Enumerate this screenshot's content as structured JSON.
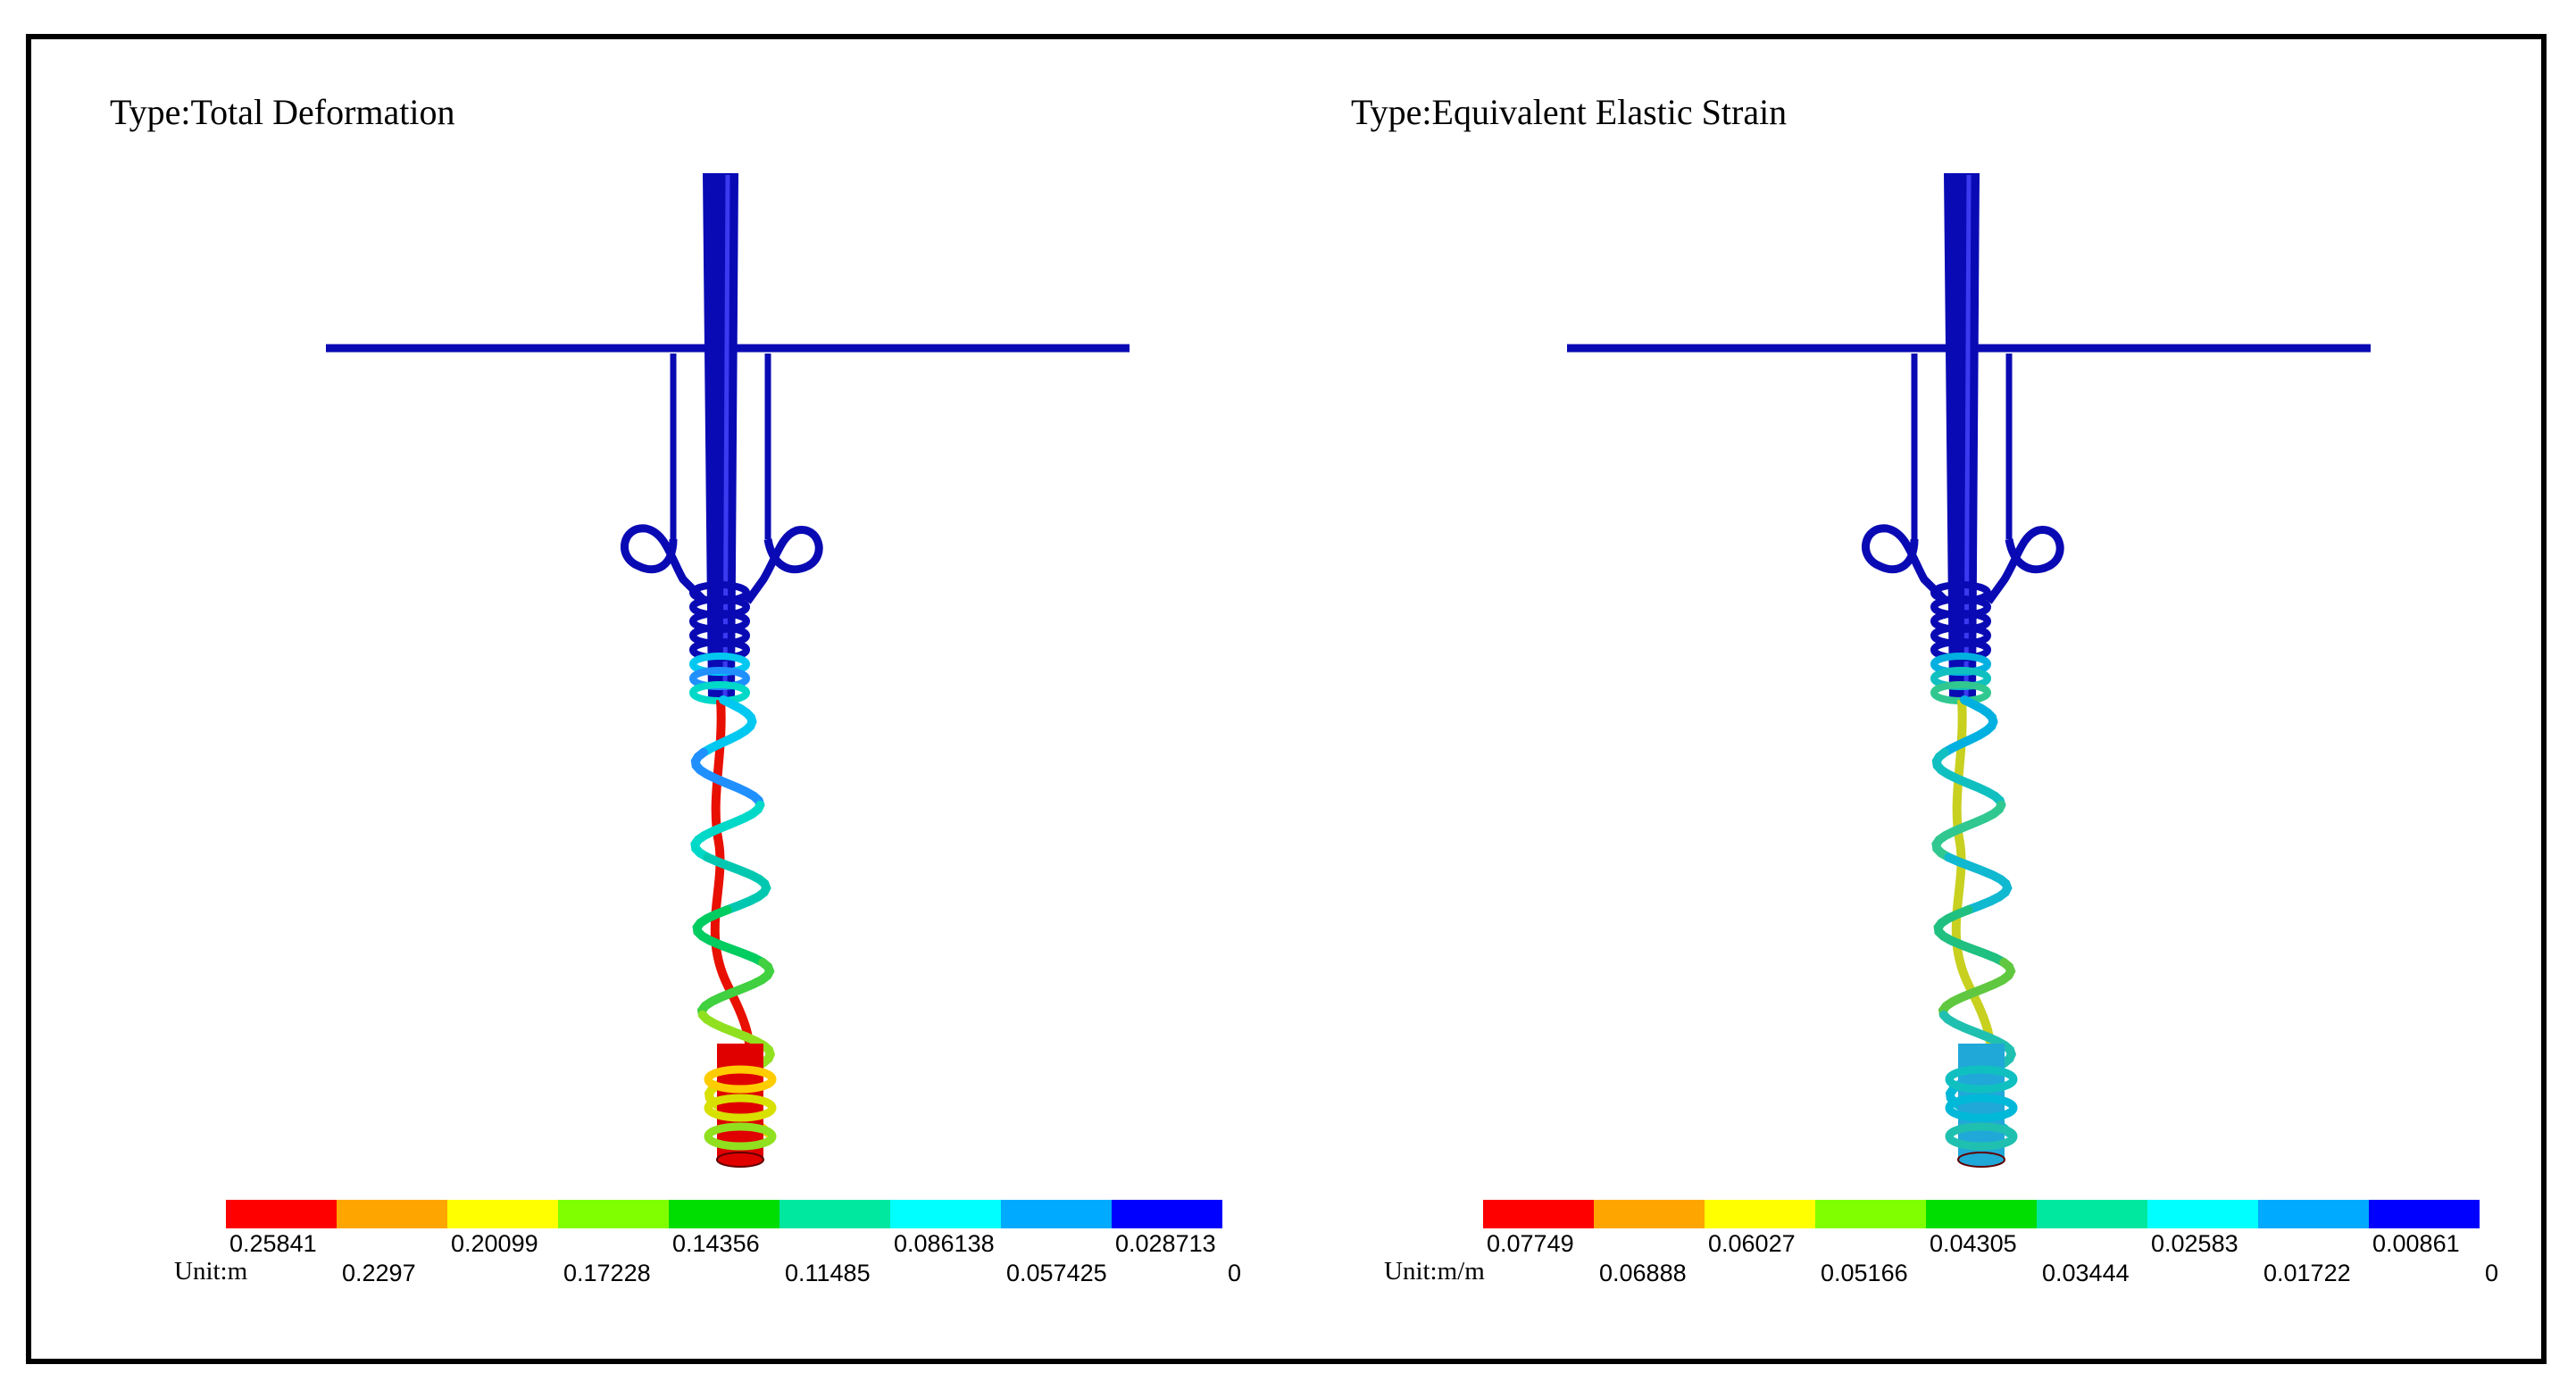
{
  "panels": [
    {
      "title": "Type:Total Deformation",
      "unit": "Unit:m",
      "legend_colors": [
        "#ff0000",
        "#ffa500",
        "#ffff00",
        "#80ff00",
        "#00dd00",
        "#00e8a0",
        "#00ffff",
        "#00aaff",
        "#0000ff"
      ],
      "legend_labels_top": [
        "0.25841",
        "0.20099",
        "0.14356",
        "0.086138",
        "0.028713"
      ],
      "legend_labels_bottom": [
        "0.2297",
        "0.17228",
        "0.11485",
        "0.057425",
        "0"
      ],
      "spring_colors": [
        "#00c8f0",
        "#2090ff",
        "#00d8c8",
        "#00c8b0",
        "#00cc60",
        "#40d040",
        "#90e020",
        "#d8e000",
        "#ffcc00"
      ],
      "wire_color": "#e81000",
      "bottom_tube_color": "#e00000"
    },
    {
      "title": "Type:Equivalent Elastic Strain",
      "unit": "Unit:m/m",
      "legend_colors": [
        "#ff0000",
        "#ffa500",
        "#ffff00",
        "#80ff00",
        "#00dd00",
        "#00e8a0",
        "#00ffff",
        "#00aaff",
        "#0000ff"
      ],
      "legend_labels_top": [
        "0.07749",
        "0.06027",
        "0.04305",
        "0.02583",
        "0.00861"
      ],
      "legend_labels_bottom": [
        "0.06888",
        "0.05166",
        "0.03444",
        "0.01722",
        "0"
      ],
      "spring_colors": [
        "#00b0e0",
        "#10c0c0",
        "#30c890",
        "#10b8d0",
        "#20c080",
        "#60c840",
        "#20c0b0",
        "#00b8d8",
        "#10c0c0"
      ],
      "wire_color": "#c8d020",
      "bottom_tube_color": "#20a8d8"
    }
  ],
  "structure_color": "#0a0ab4"
}
